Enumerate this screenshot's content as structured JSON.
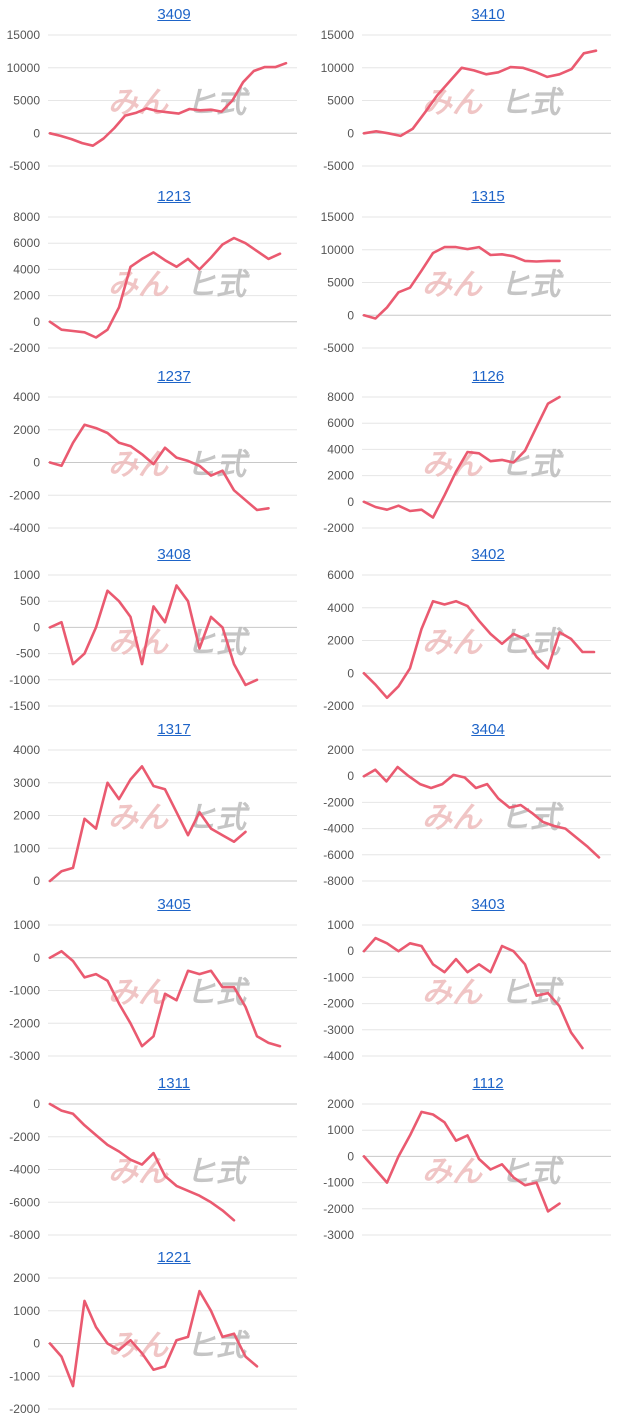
{
  "chart_data": [
    {
      "type": "line",
      "title": "3409",
      "yticks": [
        15000,
        10000,
        5000,
        0,
        -5000
      ],
      "ylim": [
        -5000,
        15000
      ],
      "color": "#ea5a70",
      "series": [
        {
          "values": [
            0,
            -400,
            -900,
            -1500,
            -1900,
            -800,
            800,
            2700,
            3100,
            3800,
            3400,
            3200,
            3000,
            3700,
            3500,
            3600,
            3300,
            5000,
            7800,
            9500,
            10100,
            10100,
            10700
          ]
        }
      ]
    },
    {
      "type": "line",
      "title": "3410",
      "yticks": [
        15000,
        10000,
        5000,
        0,
        -5000
      ],
      "ylim": [
        -5000,
        15000
      ],
      "color": "#ea5a70",
      "series": [
        {
          "values": [
            0,
            300,
            0,
            -400,
            700,
            3200,
            5800,
            7900,
            10000,
            9600,
            9000,
            9300,
            10100,
            10000,
            9400,
            8600,
            9000,
            9800,
            12200,
            12600
          ]
        }
      ]
    },
    {
      "type": "line",
      "title": "1213",
      "yticks": [
        8000,
        6000,
        4000,
        2000,
        0,
        -2000
      ],
      "ylim": [
        -2000,
        8000
      ],
      "color": "#ea5a70",
      "series": [
        {
          "values": [
            0,
            -600,
            -700,
            -800,
            -1200,
            -600,
            1100,
            4200,
            4800,
            5300,
            4700,
            4200,
            4800,
            4000,
            4900,
            5900,
            6400,
            6000,
            5400,
            4800,
            5200
          ]
        }
      ]
    },
    {
      "type": "line",
      "title": "1315",
      "yticks": [
        15000,
        10000,
        5000,
        0,
        -5000
      ],
      "ylim": [
        -5000,
        15000
      ],
      "color": "#ea5a70",
      "series": [
        {
          "values": [
            0,
            -500,
            1200,
            3500,
            4200,
            6800,
            9500,
            10400,
            10400,
            10100,
            10400,
            9200,
            9300,
            9000,
            8300,
            8200,
            8300,
            8300
          ]
        }
      ]
    },
    {
      "type": "line",
      "title": "1237",
      "yticks": [
        4000,
        2000,
        0,
        -2000,
        -4000
      ],
      "ylim": [
        -4000,
        4000
      ],
      "color": "#ea5a70",
      "series": [
        {
          "values": [
            0,
            -200,
            1200,
            2300,
            2100,
            1800,
            1200,
            1000,
            500,
            -100,
            900,
            300,
            100,
            -200,
            -800,
            -500,
            -1700,
            -2300,
            -2900,
            -2800
          ]
        }
      ]
    },
    {
      "type": "line",
      "title": "1126",
      "yticks": [
        8000,
        6000,
        4000,
        2000,
        0,
        -2000
      ],
      "ylim": [
        -2000,
        8000
      ],
      "color": "#ea5a70",
      "series": [
        {
          "values": [
            0,
            -400,
            -600,
            -300,
            -700,
            -600,
            -1200,
            500,
            2300,
            3800,
            3700,
            3100,
            3200,
            3000,
            3900,
            5700,
            7500,
            8000
          ]
        }
      ]
    },
    {
      "type": "line",
      "title": "3408",
      "yticks": [
        1000,
        500,
        0,
        -500,
        -1000,
        -1500
      ],
      "ylim": [
        -1500,
        1000
      ],
      "color": "#ea5a70",
      "series": [
        {
          "values": [
            0,
            100,
            -700,
            -500,
            0,
            700,
            500,
            200,
            -700,
            400,
            100,
            800,
            500,
            -400,
            200,
            0,
            -700,
            -1100,
            -1000
          ]
        }
      ]
    },
    {
      "type": "line",
      "title": "3402",
      "yticks": [
        6000,
        4000,
        2000,
        0,
        -2000
      ],
      "ylim": [
        -2000,
        6000
      ],
      "color": "#ea5a70",
      "series": [
        {
          "values": [
            0,
            -700,
            -1500,
            -800,
            300,
            2700,
            4400,
            4200,
            4400,
            4100,
            3200,
            2400,
            1800,
            2400,
            2100,
            1000,
            300,
            2500,
            2100,
            1300,
            1300
          ]
        }
      ]
    },
    {
      "type": "line",
      "title": "1317",
      "yticks": [
        4000,
        3000,
        2000,
        1000,
        0
      ],
      "ylim": [
        0,
        4000
      ],
      "color": "#ea5a70",
      "series": [
        {
          "values": [
            0,
            300,
            400,
            1900,
            1600,
            3000,
            2500,
            3100,
            3500,
            2900,
            2800,
            2100,
            1400,
            2100,
            1600,
            1400,
            1200,
            1500
          ]
        }
      ]
    },
    {
      "type": "line",
      "title": "3404",
      "yticks": [
        2000,
        0,
        -2000,
        -4000,
        -6000,
        -8000
      ],
      "ylim": [
        -8000,
        2000
      ],
      "color": "#ea5a70",
      "series": [
        {
          "values": [
            0,
            500,
            -400,
            700,
            0,
            -600,
            -900,
            -600,
            100,
            -100,
            -900,
            -600,
            -1700,
            -2400,
            -2200,
            -2800,
            -3500,
            -3800,
            -4000,
            -4700,
            -5400,
            -6200
          ]
        }
      ]
    },
    {
      "type": "line",
      "title": "3405",
      "yticks": [
        1000,
        0,
        -1000,
        -2000,
        -3000
      ],
      "ylim": [
        -3000,
        1000
      ],
      "color": "#ea5a70",
      "series": [
        {
          "values": [
            0,
            200,
            -100,
            -600,
            -500,
            -700,
            -1400,
            -2000,
            -2700,
            -2400,
            -1100,
            -1300,
            -400,
            -500,
            -400,
            -900,
            -900,
            -1500,
            -2400,
            -2600,
            -2700
          ]
        }
      ]
    },
    {
      "type": "line",
      "title": "3403",
      "yticks": [
        1000,
        0,
        -1000,
        -2000,
        -3000,
        -4000
      ],
      "ylim": [
        -4000,
        1000
      ],
      "color": "#ea5a70",
      "series": [
        {
          "values": [
            0,
            500,
            300,
            0,
            300,
            200,
            -500,
            -800,
            -300,
            -800,
            -500,
            -800,
            200,
            0,
            -500,
            -1700,
            -1600,
            -2100,
            -3100,
            -3700
          ]
        }
      ]
    },
    {
      "type": "line",
      "title": "1311",
      "yticks": [
        0,
        -2000,
        -4000,
        -6000,
        -8000
      ],
      "ylim": [
        -8000,
        0
      ],
      "color": "#ea5a70",
      "series": [
        {
          "values": [
            0,
            -400,
            -600,
            -1300,
            -1900,
            -2500,
            -2900,
            -3400,
            -3700,
            -3000,
            -4400,
            -5000,
            -5300,
            -5600,
            -6000,
            -6500,
            -7100
          ]
        }
      ]
    },
    {
      "type": "line",
      "title": "1112",
      "yticks": [
        2000,
        1000,
        0,
        -1000,
        -2000,
        -3000
      ],
      "ylim": [
        -3000,
        2000
      ],
      "color": "#ea5a70",
      "series": [
        {
          "values": [
            0,
            -500,
            -1000,
            0,
            800,
            1700,
            1600,
            1300,
            600,
            800,
            -100,
            -500,
            -300,
            -800,
            -1100,
            -1000,
            -2100,
            -1800
          ]
        }
      ]
    },
    {
      "type": "line",
      "title": "1221",
      "yticks": [
        2000,
        1000,
        0,
        -1000,
        -2000
      ],
      "ylim": [
        -2000,
        2000
      ],
      "color": "#ea5a70",
      "series": [
        {
          "values": [
            0,
            -400,
            -1300,
            1300,
            500,
            0,
            -200,
            100,
            -300,
            -800,
            -700,
            100,
            200,
            1600,
            1000,
            200,
            300,
            -400,
            -700
          ]
        }
      ]
    }
  ],
  "watermark": {
    "left": "みん",
    "right": "ヒ式"
  }
}
